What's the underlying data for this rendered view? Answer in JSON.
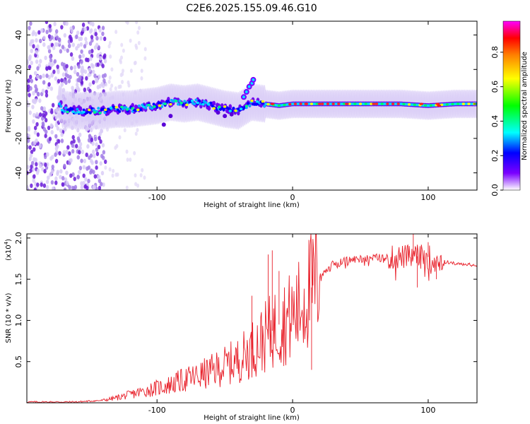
{
  "title": "C2E6.2025.155.09.46.G10",
  "chart_data": [
    {
      "type": "heatmap",
      "xlabel": "Height of straight line (km)",
      "ylabel": "Frequency (Hz)",
      "xlim": [
        -196,
        136
      ],
      "ylim": [
        -50,
        48
      ],
      "x_ticks": [
        -100,
        0,
        100
      ],
      "y_ticks": [
        -40,
        -20,
        0,
        20,
        40
      ],
      "grid": false,
      "colorbar": {
        "label": "Normalized spectral amplitude",
        "range": [
          0.0,
          0.98
        ],
        "ticks": [
          0.0,
          0.2,
          0.4,
          0.6,
          0.8
        ],
        "colormap": [
          "#ffffff",
          "#7b00ff",
          "#0000ff",
          "#00ffff",
          "#00ff00",
          "#ffff00",
          "#ff8000",
          "#ff0000",
          "#ff00ff"
        ]
      },
      "ridge": [
        {
          "x": -170,
          "f": -3
        },
        {
          "x": -160,
          "f": -4
        },
        {
          "x": -150,
          "f": -4
        },
        {
          "x": -140,
          "f": -4
        },
        {
          "x": -130,
          "f": -3
        },
        {
          "x": -120,
          "f": -3
        },
        {
          "x": -110,
          "f": -2
        },
        {
          "x": -100,
          "f": -1
        },
        {
          "x": -90,
          "f": 1
        },
        {
          "x": -80,
          "f": 0
        },
        {
          "x": -70,
          "f": 1
        },
        {
          "x": -60,
          "f": -1
        },
        {
          "x": -50,
          "f": -3
        },
        {
          "x": -40,
          "f": -4
        },
        {
          "x": -30,
          "f": 1
        },
        {
          "x": -20,
          "f": 0
        },
        {
          "x": -10,
          "f": -1
        },
        {
          "x": 0,
          "f": 0
        },
        {
          "x": 20,
          "f": 0
        },
        {
          "x": 40,
          "f": 0
        },
        {
          "x": 60,
          "f": 0
        },
        {
          "x": 80,
          "f": 0
        },
        {
          "x": 100,
          "f": -1
        },
        {
          "x": 120,
          "f": 0
        },
        {
          "x": 136,
          "f": 0
        }
      ]
    },
    {
      "type": "line",
      "xlabel": "Height of straight line (km)",
      "ylabel": "SNR (10 * v/v)",
      "y_multiplier": "(x10^4)",
      "xlim": [
        -196,
        136
      ],
      "ylim": [
        0,
        2.05
      ],
      "x_ticks": [
        -100,
        0,
        100
      ],
      "y_ticks": [
        0.5,
        1.0,
        1.5,
        2.0
      ],
      "grid": false,
      "color": "#e8202a",
      "series": [
        {
          "x": [
            -196,
            -180,
            -160,
            -150,
            -140,
            -130,
            -120,
            -110,
            -100,
            -90,
            -80,
            -70,
            -60,
            -50,
            -40,
            -30,
            -20,
            -10,
            0,
            5,
            10,
            20,
            30,
            40,
            50,
            60,
            70,
            80,
            90,
            100,
            110,
            120,
            136
          ],
          "values": [
            0.01,
            0.01,
            0.01,
            0.02,
            0.03,
            0.06,
            0.1,
            0.14,
            0.18,
            0.22,
            0.28,
            0.32,
            0.38,
            0.45,
            0.52,
            0.65,
            0.8,
            0.95,
            1.05,
            1.15,
            1.3,
            1.55,
            1.68,
            1.73,
            1.75,
            1.76,
            1.76,
            1.77,
            1.78,
            1.77,
            1.72,
            1.69,
            1.67
          ]
        }
      ],
      "peaks": [
        {
          "x": -30,
          "y": 1.3
        },
        {
          "x": -18,
          "y": 1.8
        },
        {
          "x": -15,
          "y": 1.85
        },
        {
          "x": -10,
          "y": 1.6
        },
        {
          "x": 15,
          "y": 1.95
        },
        {
          "x": 14,
          "y": 0.4
        },
        {
          "x": 89,
          "y": 2.05
        },
        {
          "x": 92,
          "y": 1.4
        },
        {
          "x": 100,
          "y": 1.95
        },
        {
          "x": 106,
          "y": 1.5
        }
      ]
    }
  ]
}
